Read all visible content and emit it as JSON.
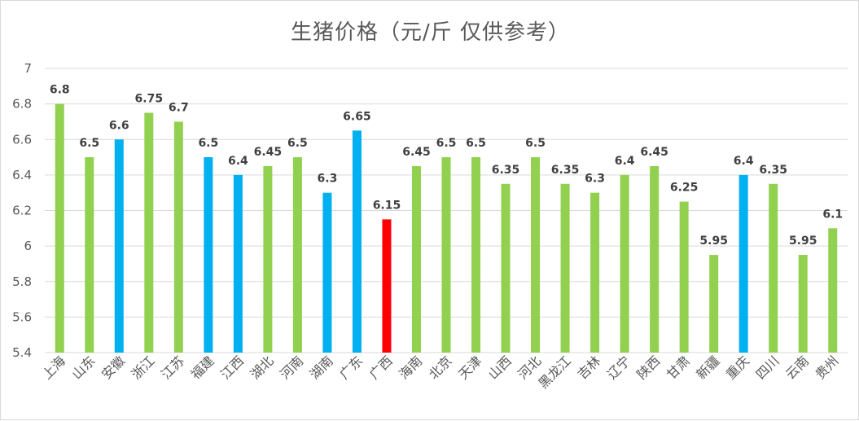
{
  "chart_data": {
    "type": "bar",
    "title": "生猪价格（元/斤 仅供参考）",
    "xlabel": "",
    "ylabel": "",
    "ylim": [
      5.4,
      7
    ],
    "yticks": [
      "5.4",
      "5.6",
      "5.8",
      "6",
      "6.2",
      "6.4",
      "6.6",
      "6.8",
      "7"
    ],
    "grid": true,
    "legend": "none",
    "categories": [
      "上海",
      "山东",
      "安徽",
      "浙江",
      "江苏",
      "福建",
      "江西",
      "湖北",
      "河南",
      "湖南",
      "广东",
      "广西",
      "海南",
      "北京",
      "天津",
      "山西",
      "河北",
      "黑龙江",
      "吉林",
      "辽宁",
      "陕西",
      "甘肃",
      "新疆",
      "重庆",
      "四川",
      "云南",
      "贵州"
    ],
    "values": [
      6.8,
      6.5,
      6.6,
      6.75,
      6.7,
      6.5,
      6.4,
      6.45,
      6.5,
      6.3,
      6.65,
      6.15,
      6.45,
      6.5,
      6.5,
      6.35,
      6.5,
      6.35,
      6.3,
      6.4,
      6.45,
      6.25,
      5.95,
      6.4,
      6.35,
      5.95,
      6.1
    ],
    "value_labels": [
      "6.8",
      "6.5",
      "6.6",
      "6.75",
      "6.7",
      "6.5",
      "6.4",
      "6.45",
      "6.5",
      "6.3",
      "6.65",
      "6.15",
      "6.45",
      "6.5",
      "6.5",
      "6.35",
      "6.5",
      "6.35",
      "6.3",
      "6.4",
      "6.45",
      "6.25",
      "5.95",
      "6.4",
      "6.35",
      "5.95",
      "6.1"
    ],
    "bar_colors": [
      "#92d050",
      "#92d050",
      "#00b0f0",
      "#92d050",
      "#92d050",
      "#00b0f0",
      "#00b0f0",
      "#92d050",
      "#92d050",
      "#00b0f0",
      "#00b0f0",
      "#ff0000",
      "#92d050",
      "#92d050",
      "#92d050",
      "#92d050",
      "#92d050",
      "#92d050",
      "#92d050",
      "#92d050",
      "#92d050",
      "#92d050",
      "#92d050",
      "#00b0f0",
      "#92d050",
      "#92d050",
      "#92d050"
    ]
  }
}
